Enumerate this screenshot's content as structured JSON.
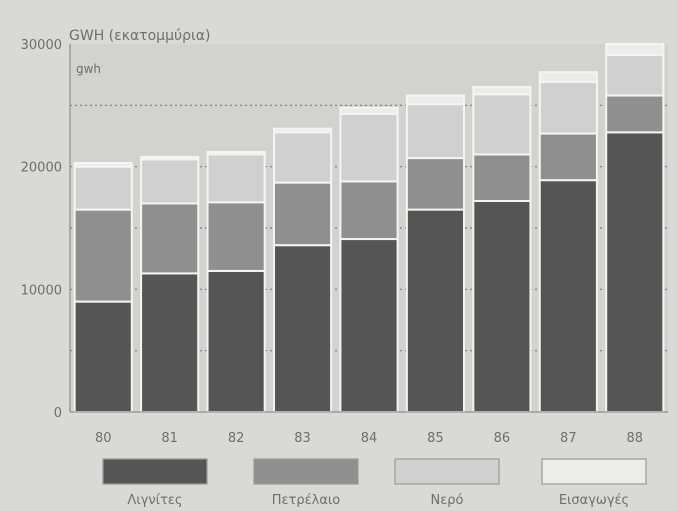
{
  "chart_data": {
    "type": "bar",
    "stacked": true,
    "title": "GWH (εκατομμύρια)",
    "unit_label": "gwh",
    "categories": [
      "80",
      "81",
      "82",
      "83",
      "84",
      "85",
      "86",
      "87",
      "88"
    ],
    "y_ticks": [
      "0",
      "10000",
      "20000",
      "30000"
    ],
    "ylim": [
      0,
      30000
    ],
    "grid": true,
    "legend_position": "bottom",
    "series": [
      {
        "name": "Λιγνίτες",
        "color": "#555555",
        "values": [
          9000,
          11300,
          11500,
          13600,
          14100,
          16500,
          17200,
          18900,
          22800
        ]
      },
      {
        "name": "Πετρέλαιο",
        "color": "#8f8f8f",
        "values": [
          7500,
          5700,
          5600,
          5100,
          4700,
          4200,
          3800,
          3800,
          3000
        ]
      },
      {
        "name": "Νερό",
        "color": "#d0d0d0",
        "values": [
          3500,
          3600,
          3900,
          4100,
          5500,
          4400,
          4900,
          4200,
          3300
        ]
      },
      {
        "name": "Εισαγωγές",
        "color": "#ececea",
        "values": [
          300,
          200,
          200,
          300,
          500,
          700,
          600,
          800,
          900
        ]
      }
    ]
  }
}
